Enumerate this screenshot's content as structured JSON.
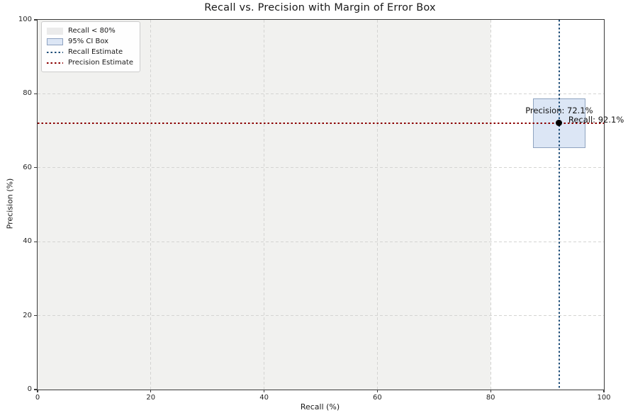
{
  "chart_data": {
    "type": "scatter",
    "title": "Recall vs. Precision with Margin of Error Box",
    "xlabel": "Recall (%)",
    "ylabel": "Precision (%)",
    "xlim": [
      0,
      100
    ],
    "ylim": [
      0,
      100
    ],
    "x_ticks": [
      0,
      20,
      40,
      60,
      80,
      100
    ],
    "y_ticks": [
      0,
      20,
      40,
      60,
      80,
      100
    ],
    "grid": true,
    "point": {
      "recall": 92.1,
      "precision": 72.1
    },
    "recall_estimate": 92.1,
    "precision_estimate": 72.1,
    "ci_box": {
      "recall_min": 87.5,
      "recall_max": 96.8,
      "precision_min": 65.4,
      "precision_max": 78.8
    },
    "shaded_region": {
      "label": "Recall < 80%",
      "x_min": 0,
      "x_max": 80
    },
    "annotations": [
      {
        "text": "Precision: 72.1%"
      },
      {
        "text": "Recall: 92.1%"
      }
    ],
    "legend": {
      "position": "upper-left",
      "entries": [
        {
          "label": "Recall < 80%",
          "swatch": "gray-patch"
        },
        {
          "label": "95% CI Box",
          "swatch": "blue-patch"
        },
        {
          "label": "Recall Estimate",
          "swatch": "blue-dotted-line"
        },
        {
          "label": "Precision Estimate",
          "swatch": "red-dotted-line"
        }
      ]
    }
  },
  "colors": {
    "recall_line": "#1f4e79",
    "precision_line": "#8b0000",
    "ci_box_fill": "#dce6f5",
    "ci_box_edge": "#8fa3c0",
    "shaded_region_fill": "#f1f1ef",
    "point": "#000000",
    "grid": "#d4d4d2",
    "spine": "#3a3a3a",
    "legend_gray_swatch": "#ebebeb",
    "legend_blue_swatch": "#dce6f5"
  }
}
